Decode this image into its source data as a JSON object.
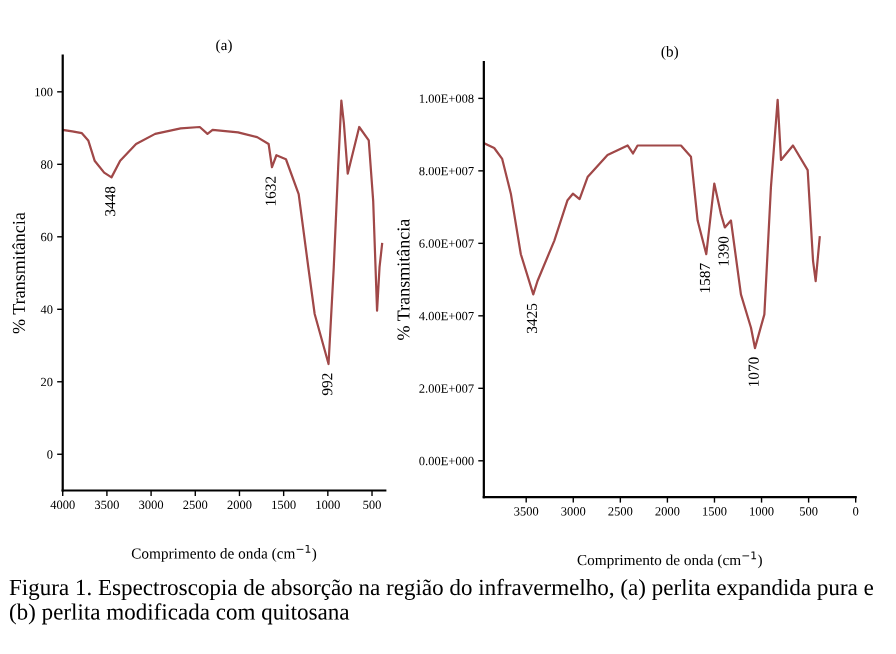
{
  "chart_data": [
    {
      "type": "line",
      "title": "(a)",
      "xlabel": "Comprimento de onda (cm$^{−1}$)",
      "ylabel": "% Transmitância",
      "x": [
        4000,
        3892,
        3783,
        3711,
        3639,
        3531,
        3448,
        3350,
        3170,
        2954,
        2665,
        2449,
        2362,
        2304,
        2016,
        1800,
        1670,
        1632,
        1582,
        1474,
        1330,
        1221,
        1149,
        992,
        933,
        883,
        847,
        818,
        775,
        645,
        537,
        487,
        443,
        415,
        386
      ],
      "series": [
        {
          "color": "#a04848",
          "values": [
            89.5,
            89.1,
            88.6,
            86.6,
            81,
            77.7,
            76.4,
            81,
            85.6,
            88.4,
            89.9,
            90.3,
            88.4,
            89.5,
            88.8,
            87.5,
            85.6,
            79.2,
            82.5,
            81.4,
            71.8,
            51.6,
            38.7,
            24.9,
            51.6,
            79.2,
            97.6,
            91.2,
            77.4,
            90.3,
            86.6,
            70,
            39.6,
            51.6,
            58
          ]
        }
      ],
      "xlim": [
        4000,
        350
      ],
      "xticks": [
        4000,
        3500,
        3000,
        2500,
        2000,
        1500,
        1000,
        500
      ],
      "ylim": [
        -10,
        110
      ],
      "yticks": [
        0,
        20,
        40,
        60,
        80,
        100
      ],
      "grid": false,
      "line_style": "solid",
      "marker": "none",
      "annotations": [
        {
          "text": "3448",
          "x": 3448,
          "y": 76.4
        },
        {
          "text": "1632",
          "x": 1632,
          "y": 79.2
        },
        {
          "text": "992",
          "x": 992,
          "y": 24.9
        },
        "Figura 1. Espectroscopia de absorção na região do infravermelho, (a) perlita expandida pura e (b) perlita modificada com quitosana"
      ]
    },
    {
      "type": "line",
      "title": "(b)",
      "xlabel": "Comprimento de onda (cm$^{−1}$)",
      "ylabel": "% Transmitância",
      "x": [
        3946,
        3840,
        3755,
        3663,
        3557,
        3425,
        3380,
        3202,
        3061,
        3004,
        2933,
        2848,
        2636,
        2423,
        2366,
        2317,
        1856,
        1750,
        1679,
        1587,
        1502,
        1431,
        1390,
        1325,
        1219,
        1112,
        1070,
        970,
        900,
        829,
        793,
        666,
        510,
        453,
        425,
        382
      ],
      "series": [
        {
          "color": "#a04848",
          "values": [
            87600000,
            86300000,
            83300000,
            73700000,
            57000000,
            45900000,
            49600000,
            60700000,
            71900000,
            73700000,
            72200000,
            78300000,
            84400000,
            87000000,
            84800000,
            87000000,
            87000000,
            83900000,
            66300000,
            57000000,
            76500000,
            68100000,
            64400000,
            66300000,
            45900000,
            36700000,
            31100000,
            40400000,
            75600000,
            99600000,
            83000000,
            87000000,
            80200000,
            55200000,
            49600000,
            61700000
          ]
        }
      ],
      "xlim": [
        3950,
        0
      ],
      "xticks": [
        3500,
        3000,
        2500,
        2000,
        1500,
        1000,
        500,
        0
      ],
      "ylim": [
        -10000000,
        110000000
      ],
      "yticks": [
        {
          "value": 0,
          "label": "0.00E+000"
        },
        {
          "value": 20000000,
          "label": "2.00E+007"
        },
        {
          "value": 40000000,
          "label": "4.00E+007"
        },
        {
          "value": 60000000,
          "label": "6.00E+007"
        },
        {
          "value": 80000000,
          "label": "8.00E+007"
        },
        {
          "value": 100000000,
          "label": "1.00E+008"
        }
      ],
      "grid": false,
      "line_style": "solid",
      "marker": "none",
      "annotations": [
        {
          "text": "3425",
          "x": 3425,
          "y": 45900000
        },
        {
          "text": "1587",
          "x": 1587,
          "y": 57000000
        },
        {
          "text": "1390",
          "x": 1390,
          "y": 64400000
        },
        {
          "text": "1070",
          "x": 1070,
          "y": 31100000
        }
      ]
    }
  ]
}
